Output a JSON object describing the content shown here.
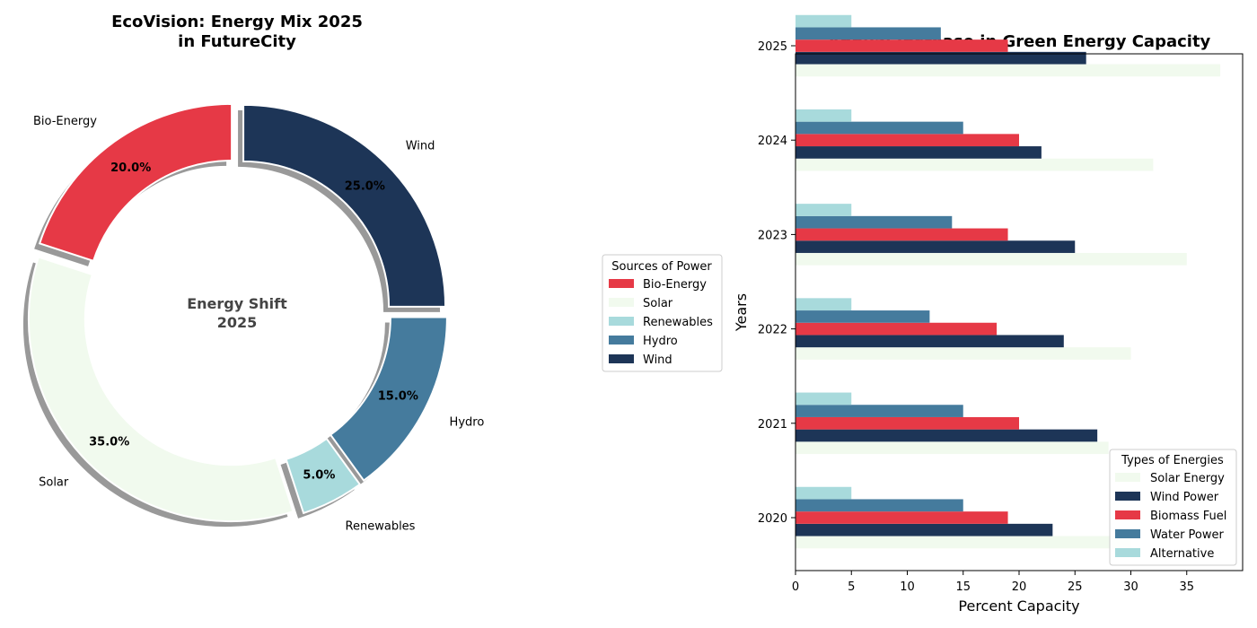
{
  "chart_data": [
    {
      "type": "pie",
      "variant": "donut",
      "title_line1": "EcoVision: Energy Mix 2025",
      "title_line2": "in FutureCity",
      "center_line1": "Energy Shift",
      "center_line2": "2025",
      "shadow": true,
      "slices": [
        {
          "label": "Bio-Energy",
          "value": 20,
          "pct_label": "20.0%",
          "color": "#E63946"
        },
        {
          "label": "Solar",
          "value": 35,
          "pct_label": "35.0%",
          "color": "#F1FAEE"
        },
        {
          "label": "Renewables",
          "value": 5,
          "pct_label": "5.0%",
          "color": "#A8DADC"
        },
        {
          "label": "Hydro",
          "value": 15,
          "pct_label": "15.0%",
          "color": "#457B9D"
        },
        {
          "label": "Wind",
          "value": 25,
          "pct_label": "25.0%",
          "color": "#1D3557"
        }
      ],
      "legend": {
        "title": "Sources of Power",
        "placement": "right",
        "entries": [
          "Bio-Energy",
          "Solar",
          "Renewables",
          "Hydro",
          "Wind"
        ]
      }
    },
    {
      "type": "bar",
      "orientation": "horizontal",
      "title": "Annual Increase in Green Energy Capacity",
      "xlabel": "Percent Capacity",
      "ylabel": "Years",
      "xlim": [
        0,
        40
      ],
      "xticks": [
        0,
        5,
        10,
        15,
        20,
        25,
        30,
        35
      ],
      "categories": [
        "2020",
        "2021",
        "2022",
        "2023",
        "2024",
        "2025"
      ],
      "series": [
        {
          "name": "Solar Energy",
          "color": "#F1FAEE",
          "values": [
            30,
            28,
            30,
            35,
            32,
            38
          ]
        },
        {
          "name": "Wind Power",
          "color": "#1D3557",
          "values": [
            23,
            27,
            24,
            25,
            22,
            26
          ]
        },
        {
          "name": "Biomass Fuel",
          "color": "#E63946",
          "values": [
            19,
            20,
            18,
            19,
            20,
            19
          ]
        },
        {
          "name": "Water Power",
          "color": "#457B9D",
          "values": [
            15,
            15,
            12,
            14,
            15,
            13
          ]
        },
        {
          "name": "Alternative",
          "color": "#A8DADC",
          "values": [
            5,
            5,
            5,
            5,
            5,
            5
          ]
        }
      ],
      "legend": {
        "title": "Types of Energies",
        "placement": "lower-right"
      }
    }
  ]
}
